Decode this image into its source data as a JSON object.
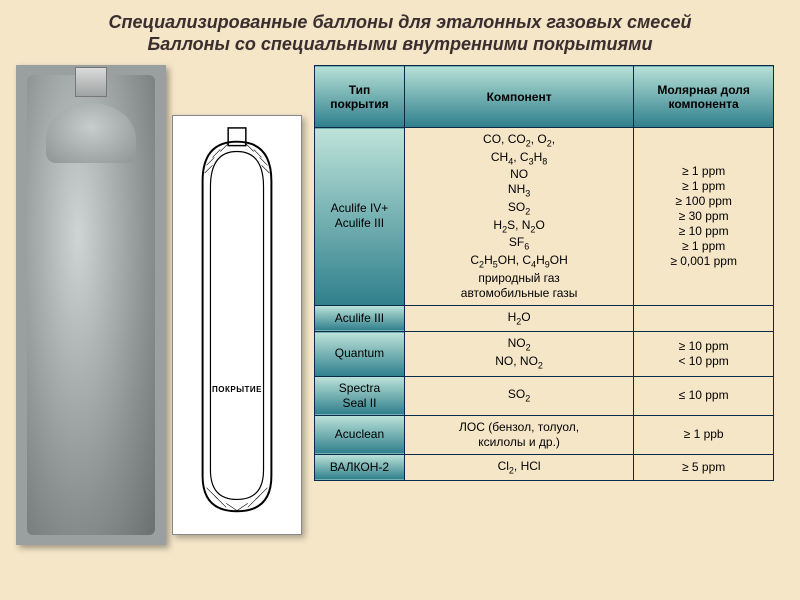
{
  "title_line1": "Специализированные баллоны для эталонных газовых смесей",
  "title_line2": "Баллоны со специальными внутренними покрытиями",
  "diagram_label": "ПОКРЫТИЕ",
  "colors": {
    "page_bg": "#f5e6c8",
    "table_border": "#0a2a4a",
    "header_grad_top": "#b7e0d6",
    "header_grad_bottom": "#2f7f8c"
  },
  "table": {
    "headers": {
      "type": "Тип покрытия",
      "component": "Компонент",
      "value": "Молярная доля компонента"
    },
    "rows": [
      {
        "type_html": "Aculife IV+<br>Aculife III",
        "component_html": "CO, CO<span class=\"sub\">2</span>, O<span class=\"sub\">2</span>,<br>CH<span class=\"sub\">4</span>, C<span class=\"sub\">3</span>H<span class=\"sub\">8</span><br>NO<br>NH<span class=\"sub\">3</span><br>SO<span class=\"sub\">2</span><br>H<span class=\"sub\">2</span>S, N<span class=\"sub\">2</span>O<br>SF<span class=\"sub\">6</span><br>C<span class=\"sub\">2</span>H<span class=\"sub\">5</span>OH, C<span class=\"sub\">4</span>H<span class=\"sub\">9</span>OH<br>природный газ<br>автомобильные газы",
        "value_html": "≥ 1 ppm<br>≥ 1 ppm<br>≥ 100 ppm<br>≥ 30 ppm<br>≥ 10 ppm<br>≥ 1 ppm<br>≥ 0,001 ppm"
      },
      {
        "type_html": "Aculife III",
        "component_html": "H<span class=\"sub\">2</span>O",
        "value_html": ""
      },
      {
        "type_html": "Quantum",
        "component_html": "NO<span class=\"sub\">2</span><br>NO, NO<span class=\"sub\">2</span>",
        "value_html": "≥ 10 ppm<br>&lt; 10 ppm"
      },
      {
        "type_html": "Spectra<br>Seal II",
        "component_html": "SO<span class=\"sub\">2</span>",
        "value_html": "≤ 10 ppm"
      },
      {
        "type_html": "Acuclean",
        "component_html": "ЛОС (бензол, толуол,<br>ксилолы и др.)",
        "value_html": "≥ 1 ppb"
      },
      {
        "type_html": "ВАЛКОН-2",
        "component_html": "Cl<span class=\"sub\">2</span>, HCl",
        "value_html": "≥ 5 ppm"
      }
    ]
  }
}
